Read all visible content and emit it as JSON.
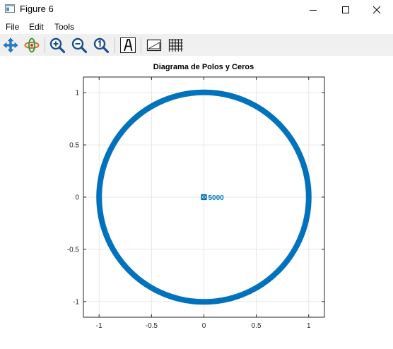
{
  "window": {
    "title": "Figure 6"
  },
  "menu": {
    "items": [
      "File",
      "Edit",
      "Tools"
    ]
  },
  "toolbar": {
    "tools": [
      "pan-icon",
      "rotate-icon",
      "zoom-in-icon",
      "zoom-out-icon",
      "zoom-reset-icon",
      "text-annotation-icon",
      "axes-toggle-icon",
      "grid-toggle-icon"
    ]
  },
  "colors": {
    "series": "#0072bd",
    "grid": "#e6e6e6",
    "axes": "#262626",
    "toolbar": "#f0f0f0"
  },
  "chart_data": {
    "type": "scatter",
    "title": "Diagrama de Polos y Ceros",
    "xlabel": "",
    "ylabel": "",
    "xlim": [
      -1.15,
      1.15
    ],
    "ylim": [
      -1.15,
      1.15
    ],
    "xticks": [
      -1,
      -0.5,
      0,
      0.5,
      1
    ],
    "yticks": [
      -1,
      -0.5,
      0,
      0.5,
      1
    ],
    "xtick_labels": [
      "-1",
      "-0.5",
      "0",
      "0.5",
      "1"
    ],
    "ytick_labels": [
      "-1",
      "-0.5",
      "0",
      "0.5",
      "1"
    ],
    "grid": true,
    "series": [
      {
        "marker": "unit-circle-points",
        "radius": 1,
        "points_note": "dense points on unit circle"
      },
      {
        "marker": "x",
        "points": [
          [
            0,
            0
          ]
        ]
      },
      {
        "marker": "o",
        "points": [
          [
            0,
            0
          ]
        ]
      }
    ],
    "annotations": [
      {
        "text": "5000",
        "x": 0,
        "y": 0
      }
    ]
  }
}
